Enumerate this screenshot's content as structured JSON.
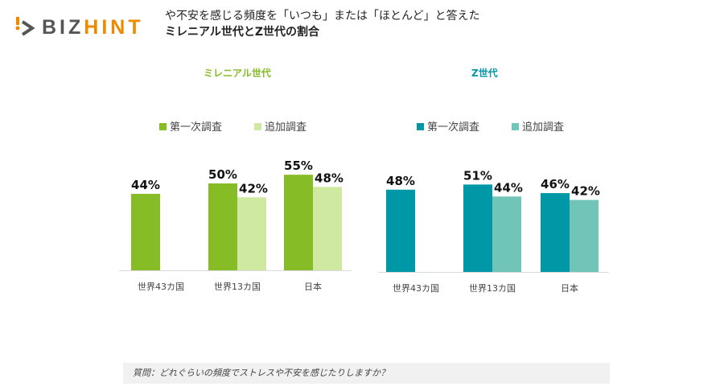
{
  "logo": {
    "part1": "BIZ",
    "part2": "HINT"
  },
  "title": {
    "line1": "や不安を感じる頻度を「いつも」または「ほとんど」と答えた",
    "line2": "ミレニアル世代とZ世代の割合"
  },
  "note": "質問：どれぐらいの頻度でストレスや不安を感じたりしますか？",
  "chart_data": [
    {
      "type": "bar",
      "title": "ミレニアル世代",
      "title_color": "#86bc25",
      "categories": [
        "世界43カ国",
        "世界13カ国",
        "日本"
      ],
      "series": [
        {
          "name": "第一次調査",
          "color": "#86bc25",
          "values": [
            44,
            50,
            55
          ]
        },
        {
          "name": "追加調査",
          "color": "#d0e9a0",
          "values": [
            null,
            42,
            48
          ]
        }
      ],
      "unit": "%",
      "ylim": [
        0,
        60
      ],
      "legend": "top",
      "grid": false
    },
    {
      "type": "bar",
      "title": "Z世代",
      "title_color": "#0097a7",
      "categories": [
        "世界43カ国",
        "世界13カ国",
        "日本"
      ],
      "series": [
        {
          "name": "第一次調査",
          "color": "#0097a7",
          "values": [
            48,
            51,
            46
          ]
        },
        {
          "name": "追加調査",
          "color": "#70c4b8",
          "values": [
            null,
            44,
            42
          ]
        }
      ],
      "unit": "%",
      "ylim": [
        0,
        60
      ],
      "legend": "top",
      "grid": false
    }
  ]
}
